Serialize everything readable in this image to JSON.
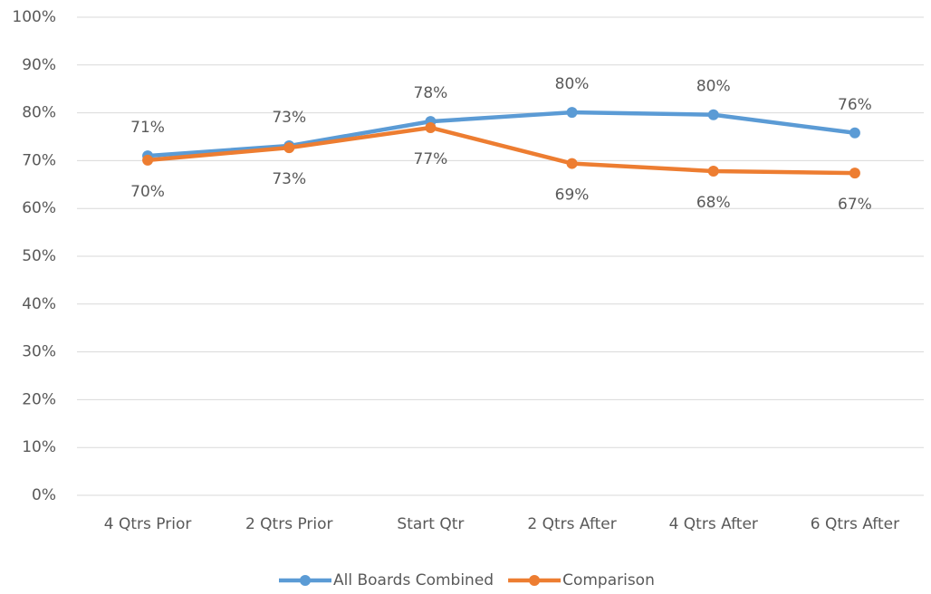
{
  "chart_data": {
    "type": "line",
    "categories": [
      "4 Qtrs Prior",
      "2 Qtrs Prior",
      "Start Qtr",
      "2 Qtrs After",
      "4 Qtrs After",
      "6 Qtrs After"
    ],
    "series": [
      {
        "name": "All Boards Combined",
        "color": "#5b9bd5",
        "values": [
          71.0,
          73.1,
          78.2,
          80.1,
          79.6,
          75.8
        ],
        "value_labels": [
          "71%",
          "73%",
          "78%",
          "80%",
          "80%",
          "76%"
        ]
      },
      {
        "name": "Comparison",
        "color": "#ed7d31",
        "values": [
          70.1,
          72.7,
          76.9,
          69.4,
          67.8,
          67.4
        ],
        "value_labels": [
          "70%",
          "73%",
          "77%",
          "69%",
          "68%",
          "67%"
        ]
      }
    ],
    "ylim": [
      0,
      100
    ],
    "yticks": [
      {
        "value": 0,
        "label": "0%"
      },
      {
        "value": 10,
        "label": "10%"
      },
      {
        "value": 20,
        "label": "20%"
      },
      {
        "value": 30,
        "label": "30%"
      },
      {
        "value": 40,
        "label": "40%"
      },
      {
        "value": 50,
        "label": "50%"
      },
      {
        "value": 60,
        "label": "60%"
      },
      {
        "value": 70,
        "label": "70%"
      },
      {
        "value": 80,
        "label": "80%"
      },
      {
        "value": 90,
        "label": "90%"
      },
      {
        "value": 100,
        "label": "100%"
      }
    ],
    "grid": true,
    "legend": "bottom"
  }
}
